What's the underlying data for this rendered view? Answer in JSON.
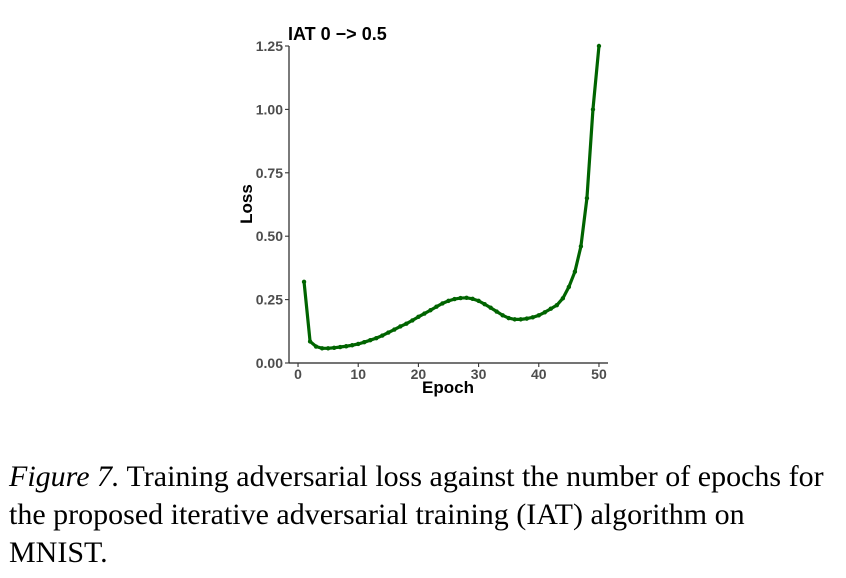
{
  "chart_data": {
    "type": "line",
    "title": "IAT 0 −> 0.5",
    "xlabel": "Epoch",
    "ylabel": "Loss",
    "xlim": [
      -1.5,
      51.5
    ],
    "ylim": [
      0,
      1.25
    ],
    "xticks": [
      0,
      10,
      20,
      30,
      40,
      50
    ],
    "yticks": [
      0.0,
      0.25,
      0.5,
      0.75,
      1.0,
      1.25
    ],
    "ytick_labels": [
      "0.00",
      "0.25",
      "0.50",
      "0.75",
      "1.00",
      "1.25"
    ],
    "grid": false,
    "line_color": "#006400",
    "series": [
      {
        "x": [
          1,
          2,
          3,
          4,
          5,
          6,
          7,
          8,
          9,
          10,
          11,
          12,
          13,
          14,
          15,
          16,
          17,
          18,
          19,
          20,
          21,
          22,
          23,
          24,
          25,
          26,
          27,
          28,
          29,
          30,
          31,
          32,
          33,
          34,
          35,
          36,
          37,
          38,
          39,
          40,
          41,
          42,
          43,
          44,
          45,
          46,
          47,
          48,
          49,
          50
        ],
        "values": [
          0.32,
          0.085,
          0.065,
          0.058,
          0.058,
          0.06,
          0.063,
          0.066,
          0.07,
          0.075,
          0.082,
          0.09,
          0.098,
          0.108,
          0.12,
          0.132,
          0.144,
          0.155,
          0.168,
          0.182,
          0.195,
          0.208,
          0.222,
          0.235,
          0.245,
          0.252,
          0.256,
          0.257,
          0.253,
          0.245,
          0.232,
          0.218,
          0.203,
          0.188,
          0.177,
          0.172,
          0.172,
          0.175,
          0.18,
          0.188,
          0.2,
          0.214,
          0.228,
          0.255,
          0.3,
          0.36,
          0.46,
          0.65,
          1.0,
          1.25
        ]
      }
    ]
  },
  "caption": {
    "label": "Figure 7.",
    "text": " Training adversarial loss against the number of epochs for the proposed iterative adversarial training (IAT) algorithm on MNIST."
  }
}
